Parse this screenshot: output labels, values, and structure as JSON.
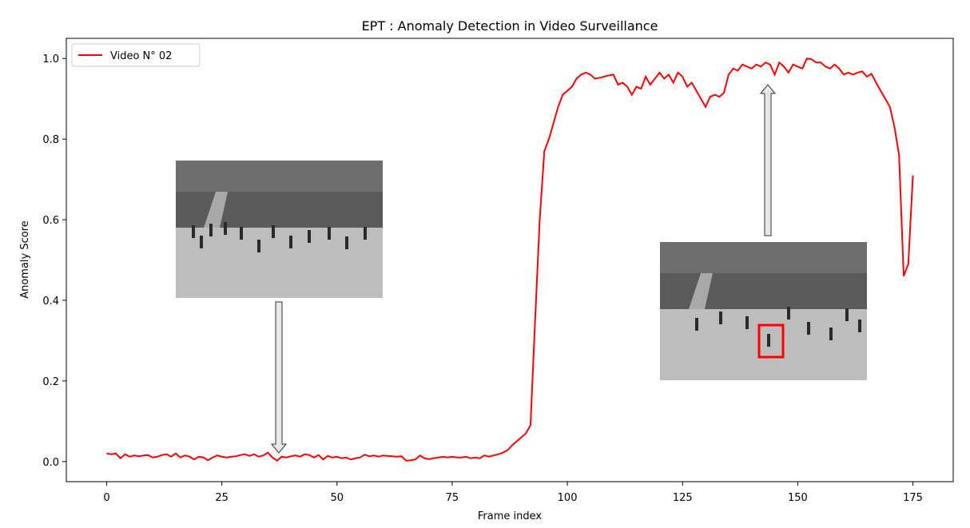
{
  "chart_data": {
    "type": "line",
    "title": "EPT : Anomaly Detection in Video Surveillance",
    "x_label": "Frame index",
    "y_label": "Anomaly Score",
    "x": [
      0,
      1,
      2,
      3,
      4,
      5,
      6,
      7,
      8,
      9,
      10,
      11,
      12,
      13,
      14,
      15,
      16,
      17,
      18,
      19,
      20,
      21,
      22,
      23,
      24,
      25,
      26,
      27,
      28,
      29,
      30,
      31,
      32,
      33,
      34,
      35,
      36,
      37,
      38,
      39,
      40,
      41,
      42,
      43,
      44,
      45,
      46,
      47,
      48,
      49,
      50,
      51,
      52,
      53,
      54,
      55,
      56,
      57,
      58,
      59,
      60,
      61,
      62,
      63,
      64,
      65,
      66,
      67,
      68,
      69,
      70,
      71,
      72,
      73,
      74,
      75,
      76,
      77,
      78,
      79,
      80,
      81,
      82,
      83,
      84,
      85,
      86,
      87,
      88,
      89,
      90,
      91,
      92,
      93,
      94,
      95,
      96,
      97,
      98,
      99,
      100,
      101,
      102,
      103,
      104,
      105,
      106,
      107,
      108,
      109,
      110,
      111,
      112,
      113,
      114,
      115,
      116,
      117,
      118,
      119,
      120,
      121,
      122,
      123,
      124,
      125,
      126,
      127,
      128,
      129,
      130,
      131,
      132,
      133,
      134,
      135,
      136,
      137,
      138,
      139,
      140,
      141,
      142,
      143,
      144,
      145,
      146,
      147,
      148,
      149,
      150,
      151,
      152,
      153,
      154,
      155,
      156,
      157,
      158,
      159,
      160,
      161,
      162,
      163,
      164,
      165,
      166,
      167,
      168,
      169,
      170,
      171,
      172,
      173,
      174,
      175
    ],
    "series": [
      {
        "name": "Video N° 02",
        "color": "#ff0000",
        "values": [
          0.02,
          0.018,
          0.02,
          0.008,
          0.018,
          0.012,
          0.015,
          0.013,
          0.015,
          0.016,
          0.01,
          0.012,
          0.016,
          0.018,
          0.012,
          0.02,
          0.01,
          0.015,
          0.012,
          0.005,
          0.012,
          0.01,
          0.003,
          0.01,
          0.015,
          0.012,
          0.01,
          0.012,
          0.013,
          0.016,
          0.018,
          0.014,
          0.018,
          0.012,
          0.015,
          0.022,
          0.01,
          0.002,
          0.012,
          0.01,
          0.013,
          0.015,
          0.012,
          0.018,
          0.016,
          0.01,
          0.016,
          0.005,
          0.014,
          0.01,
          0.012,
          0.008,
          0.01,
          0.005,
          0.008,
          0.01,
          0.017,
          0.013,
          0.015,
          0.012,
          0.015,
          0.014,
          0.013,
          0.012,
          0.013,
          0.002,
          0.003,
          0.005,
          0.015,
          0.008,
          0.006,
          0.008,
          0.01,
          0.012,
          0.01,
          0.012,
          0.01,
          0.01,
          0.012,
          0.008,
          0.01,
          0.008,
          0.015,
          0.012,
          0.015,
          0.018,
          0.022,
          0.028,
          0.04,
          0.05,
          0.06,
          0.07,
          0.09,
          0.35,
          0.6,
          0.77,
          0.8,
          0.84,
          0.88,
          0.91,
          0.92,
          0.93,
          0.95,
          0.96,
          0.965,
          0.96,
          0.95,
          0.952,
          0.955,
          0.958,
          0.96,
          0.935,
          0.94,
          0.93,
          0.91,
          0.93,
          0.925,
          0.955,
          0.935,
          0.95,
          0.965,
          0.95,
          0.96,
          0.94,
          0.965,
          0.955,
          0.93,
          0.94,
          0.92,
          0.9,
          0.88,
          0.905,
          0.91,
          0.905,
          0.915,
          0.96,
          0.975,
          0.97,
          0.985,
          0.98,
          0.975,
          0.985,
          0.98,
          0.99,
          0.985,
          0.96,
          0.99,
          0.98,
          0.965,
          0.985,
          0.98,
          0.975,
          1.0,
          0.998,
          0.99,
          0.99,
          0.98,
          0.975,
          0.985,
          0.975,
          0.96,
          0.965,
          0.96,
          0.965,
          0.968,
          0.955,
          0.962,
          0.94,
          0.92,
          0.9,
          0.88,
          0.83,
          0.76,
          0.46,
          0.49,
          0.71
        ]
      }
    ],
    "xlim": [
      -8.75,
      183.75
    ],
    "ylim": [
      -0.05,
      1.05
    ],
    "xticks": [
      0,
      25,
      50,
      75,
      100,
      125,
      150,
      175
    ],
    "yticks": [
      {
        "value": 0,
        "label": "0.0"
      },
      0.2,
      0.4,
      0.6,
      0.8,
      {
        "value": 1,
        "label": "1.0"
      }
    ],
    "grid": false,
    "legend": "upper left"
  }
}
